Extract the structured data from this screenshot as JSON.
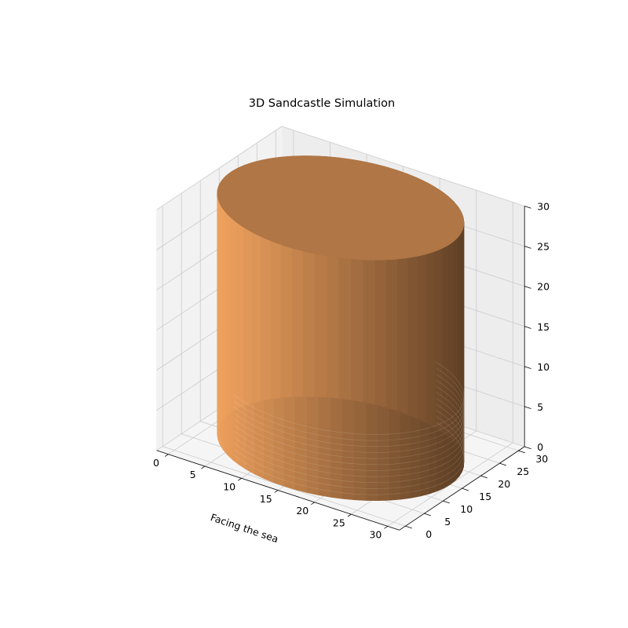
{
  "chart_data": {
    "type": "surface3d",
    "title": "3D Sandcastle Simulation",
    "xlabel": "Facing the sea",
    "ylabel": "",
    "zlabel": "",
    "xlim": [
      -1.6,
      31.6
    ],
    "ylim": [
      -1.6,
      31.6
    ],
    "zlim": [
      0,
      30
    ],
    "x_ticks": [
      "0",
      "5",
      "10",
      "15",
      "20",
      "25",
      "30"
    ],
    "y_ticks": [
      "0",
      "5",
      "10",
      "15",
      "20",
      "25",
      "30"
    ],
    "z_ticks": [
      "0",
      "5",
      "10",
      "15",
      "20",
      "25",
      "30"
    ],
    "grid": true,
    "series": [
      {
        "shape": "cylinder",
        "center_x": 15,
        "center_y": 15,
        "radius": 15,
        "z_bottom": 0,
        "z_top": 30,
        "color": "#F4A460"
      }
    ]
  }
}
